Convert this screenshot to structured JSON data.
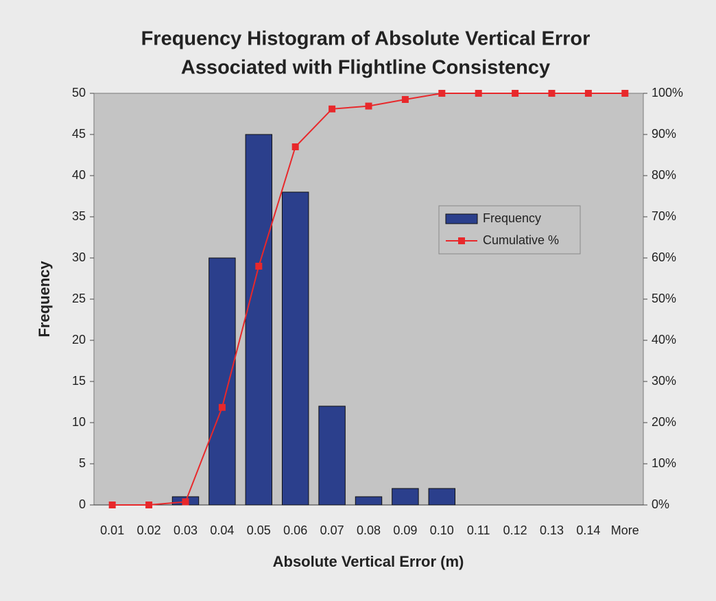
{
  "chart_data": {
    "type": "bar_line",
    "title": [
      "Frequency Histogram of Absolute Vertical Error",
      "Associated with Flightline Consistency"
    ],
    "x_label": "Absolute Vertical Error (m)",
    "y_label": "Frequency",
    "categories": [
      "0.01",
      "0.02",
      "0.03",
      "0.04",
      "0.05",
      "0.06",
      "0.07",
      "0.08",
      "0.09",
      "0.10",
      "0.11",
      "0.12",
      "0.13",
      "0.14",
      "More"
    ],
    "series": [
      {
        "name": "Frequency",
        "type": "bar",
        "color": "#2b3f8c",
        "values": [
          0,
          0,
          1,
          30,
          45,
          38,
          12,
          1,
          2,
          2,
          0,
          0,
          0,
          0,
          0
        ]
      },
      {
        "name": "Cumulative %",
        "type": "line",
        "axis": "y2",
        "color": "#e8282b",
        "values": [
          0,
          0,
          0.76,
          23.7,
          58.0,
          87.0,
          96.2,
          96.9,
          98.5,
          100,
          100,
          100,
          100,
          100,
          100
        ]
      }
    ],
    "ylim": [
      0,
      50
    ],
    "yticks": [
      0,
      5,
      10,
      15,
      20,
      25,
      30,
      35,
      40,
      45,
      50
    ],
    "y2lim": [
      0,
      100
    ],
    "y2ticks": [
      {
        "value": 0,
        "label": "0%"
      },
      {
        "value": 10,
        "label": "10%"
      },
      {
        "value": 20,
        "label": "20%"
      },
      {
        "value": 30,
        "label": "30%"
      },
      {
        "value": 40,
        "label": "40%"
      },
      {
        "value": 50,
        "label": "50%"
      },
      {
        "value": 60,
        "label": "60%"
      },
      {
        "value": 70,
        "label": "70%"
      },
      {
        "value": 80,
        "label": "80%"
      },
      {
        "value": 90,
        "label": "90%"
      },
      {
        "value": 100,
        "label": "100%"
      }
    ],
    "legend": "right"
  }
}
